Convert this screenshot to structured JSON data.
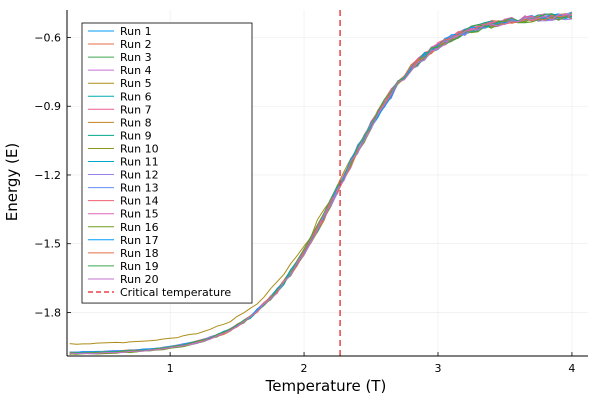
{
  "chart_data": {
    "type": "line",
    "title": "",
    "xlabel": "Temperature (T)",
    "ylabel": "Energy (E)",
    "xlim": [
      0.23,
      4.12
    ],
    "ylim": [
      -1.99,
      -0.48
    ],
    "xticks": [
      1,
      2,
      3,
      4
    ],
    "xtick_labels": [
      "1",
      "2",
      "3",
      "4"
    ],
    "yticks": [
      -1.8,
      -1.5,
      -1.2,
      -0.9,
      -0.6
    ],
    "ytick_labels": [
      "−1.8",
      "−1.5",
      "−1.2",
      "−0.9",
      "−0.6"
    ],
    "grid": true,
    "legend_position": "top-left",
    "x_range": [
      0.25,
      4.0
    ],
    "x_step": 0.05,
    "sigmoid_model": {
      "low": -1.98,
      "high": -0.5,
      "center": 2.27,
      "width": 0.32
    },
    "series": [
      {
        "name": "Run 1",
        "color": "#009AFA",
        "offset": 0.0
      },
      {
        "name": "Run 2",
        "color": "#E36F47",
        "offset": 0.004
      },
      {
        "name": "Run 3",
        "color": "#3EA44E",
        "offset": -0.003
      },
      {
        "name": "Run 4",
        "color": "#C371D2",
        "offset": 0.002
      },
      {
        "name": "Run 5",
        "color": "#AC8D18",
        "offset": 0.0,
        "low_offset": 0.04
      },
      {
        "name": "Run 6",
        "color": "#00A9AD",
        "offset": -0.002
      },
      {
        "name": "Run 7",
        "color": "#ED5D92",
        "offset": 0.003
      },
      {
        "name": "Run 8",
        "color": "#C68225",
        "offset": -0.004
      },
      {
        "name": "Run 9",
        "color": "#00A98D",
        "offset": 0.001
      },
      {
        "name": "Run 10",
        "color": "#8E971D",
        "offset": -0.001
      },
      {
        "name": "Run 11",
        "color": "#00A8CB",
        "offset": 0.002
      },
      {
        "name": "Run 12",
        "color": "#9B7FE8",
        "offset": -0.003
      },
      {
        "name": "Run 13",
        "color": "#618DF6",
        "offset": 0.004
      },
      {
        "name": "Run 14",
        "color": "#F16170",
        "offset": -0.002
      },
      {
        "name": "Run 15",
        "color": "#DD64B5",
        "offset": 0.001
      },
      {
        "name": "Run 16",
        "color": "#6B9D1F",
        "offset": -0.004
      },
      {
        "name": "Run 17",
        "color": "#009AFA",
        "offset": 0.003
      },
      {
        "name": "Run 18",
        "color": "#E36F47",
        "offset": -0.001
      },
      {
        "name": "Run 19",
        "color": "#3EA44E",
        "offset": 0.002
      },
      {
        "name": "Run 20",
        "color": "#C371D2",
        "offset": -0.002
      }
    ],
    "critical_line": {
      "name": "Critical temperature",
      "x": 2.269,
      "color": "#E8424B",
      "style": "dashed"
    }
  }
}
